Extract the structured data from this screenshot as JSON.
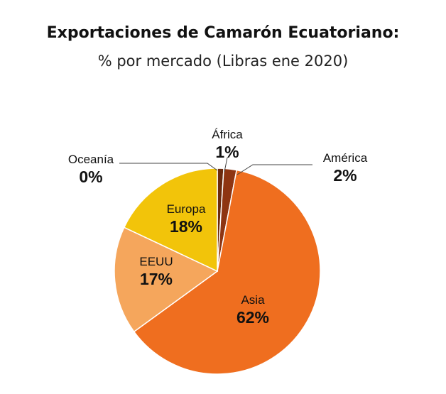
{
  "chart_data": {
    "type": "pie",
    "title": "Exportaciones de Camarón Ecuatoriano:",
    "subtitle": "% por mercado (Libras ene 2020)",
    "slices": [
      {
        "label": "África",
        "value": 1,
        "pct_label": "1%",
        "color": "#6b2a0e"
      },
      {
        "label": "América",
        "value": 2,
        "pct_label": "2%",
        "color": "#8e3512"
      },
      {
        "label": "Asia",
        "value": 62,
        "pct_label": "62%",
        "color": "#ef6e1f"
      },
      {
        "label": "EEUU",
        "value": 17,
        "pct_label": "17%",
        "color": "#f5a65c"
      },
      {
        "label": "Europa",
        "value": 18,
        "pct_label": "18%",
        "color": "#f2c40a"
      },
      {
        "label": "Oceanía",
        "value": 0,
        "pct_label": "0%",
        "color": "#222222"
      }
    ]
  }
}
